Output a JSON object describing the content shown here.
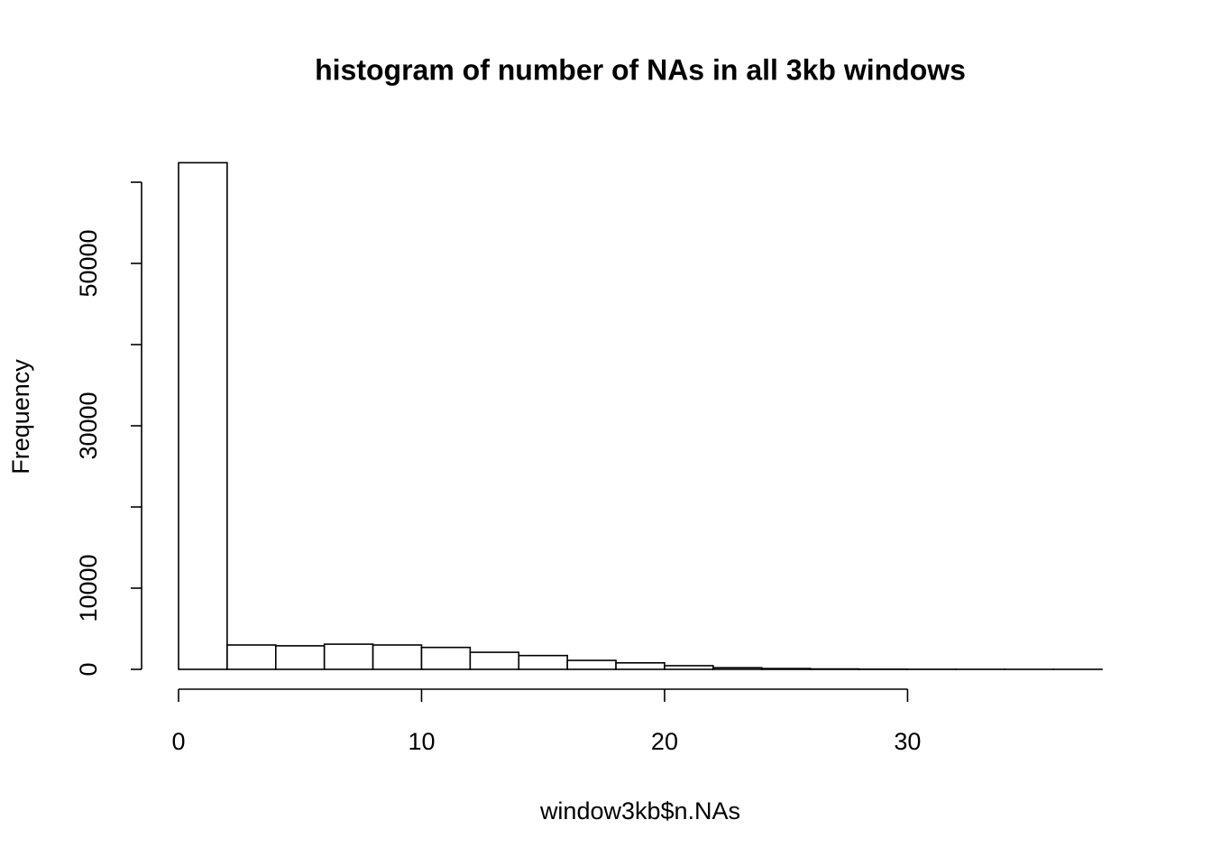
{
  "chart_data": {
    "type": "histogram",
    "title": "histogram of number of NAs in all 3kb windows",
    "x_label": "window3kb$n.NAs",
    "y_label": "Frequency",
    "bins": [
      0,
      2,
      4,
      6,
      8,
      10,
      12,
      14,
      16,
      18,
      20,
      22,
      24,
      26,
      28,
      30,
      32,
      34,
      36,
      38
    ],
    "values": [
      62400,
      3000,
      2900,
      3100,
      3000,
      2700,
      2100,
      1700,
      1100,
      800,
      450,
      200,
      100,
      50,
      20,
      10,
      5,
      2,
      1
    ],
    "color": "#ffffff",
    "xlim": [
      0,
      38
    ],
    "xticks": [
      0,
      10,
      20,
      30
    ],
    "ylim": [
      0,
      60000
    ],
    "yticks": [
      0,
      10000,
      {
        "value": 20000
      },
      30000,
      {
        "value": 40000
      },
      50000,
      {
        "value": 60000
      }
    ]
  }
}
